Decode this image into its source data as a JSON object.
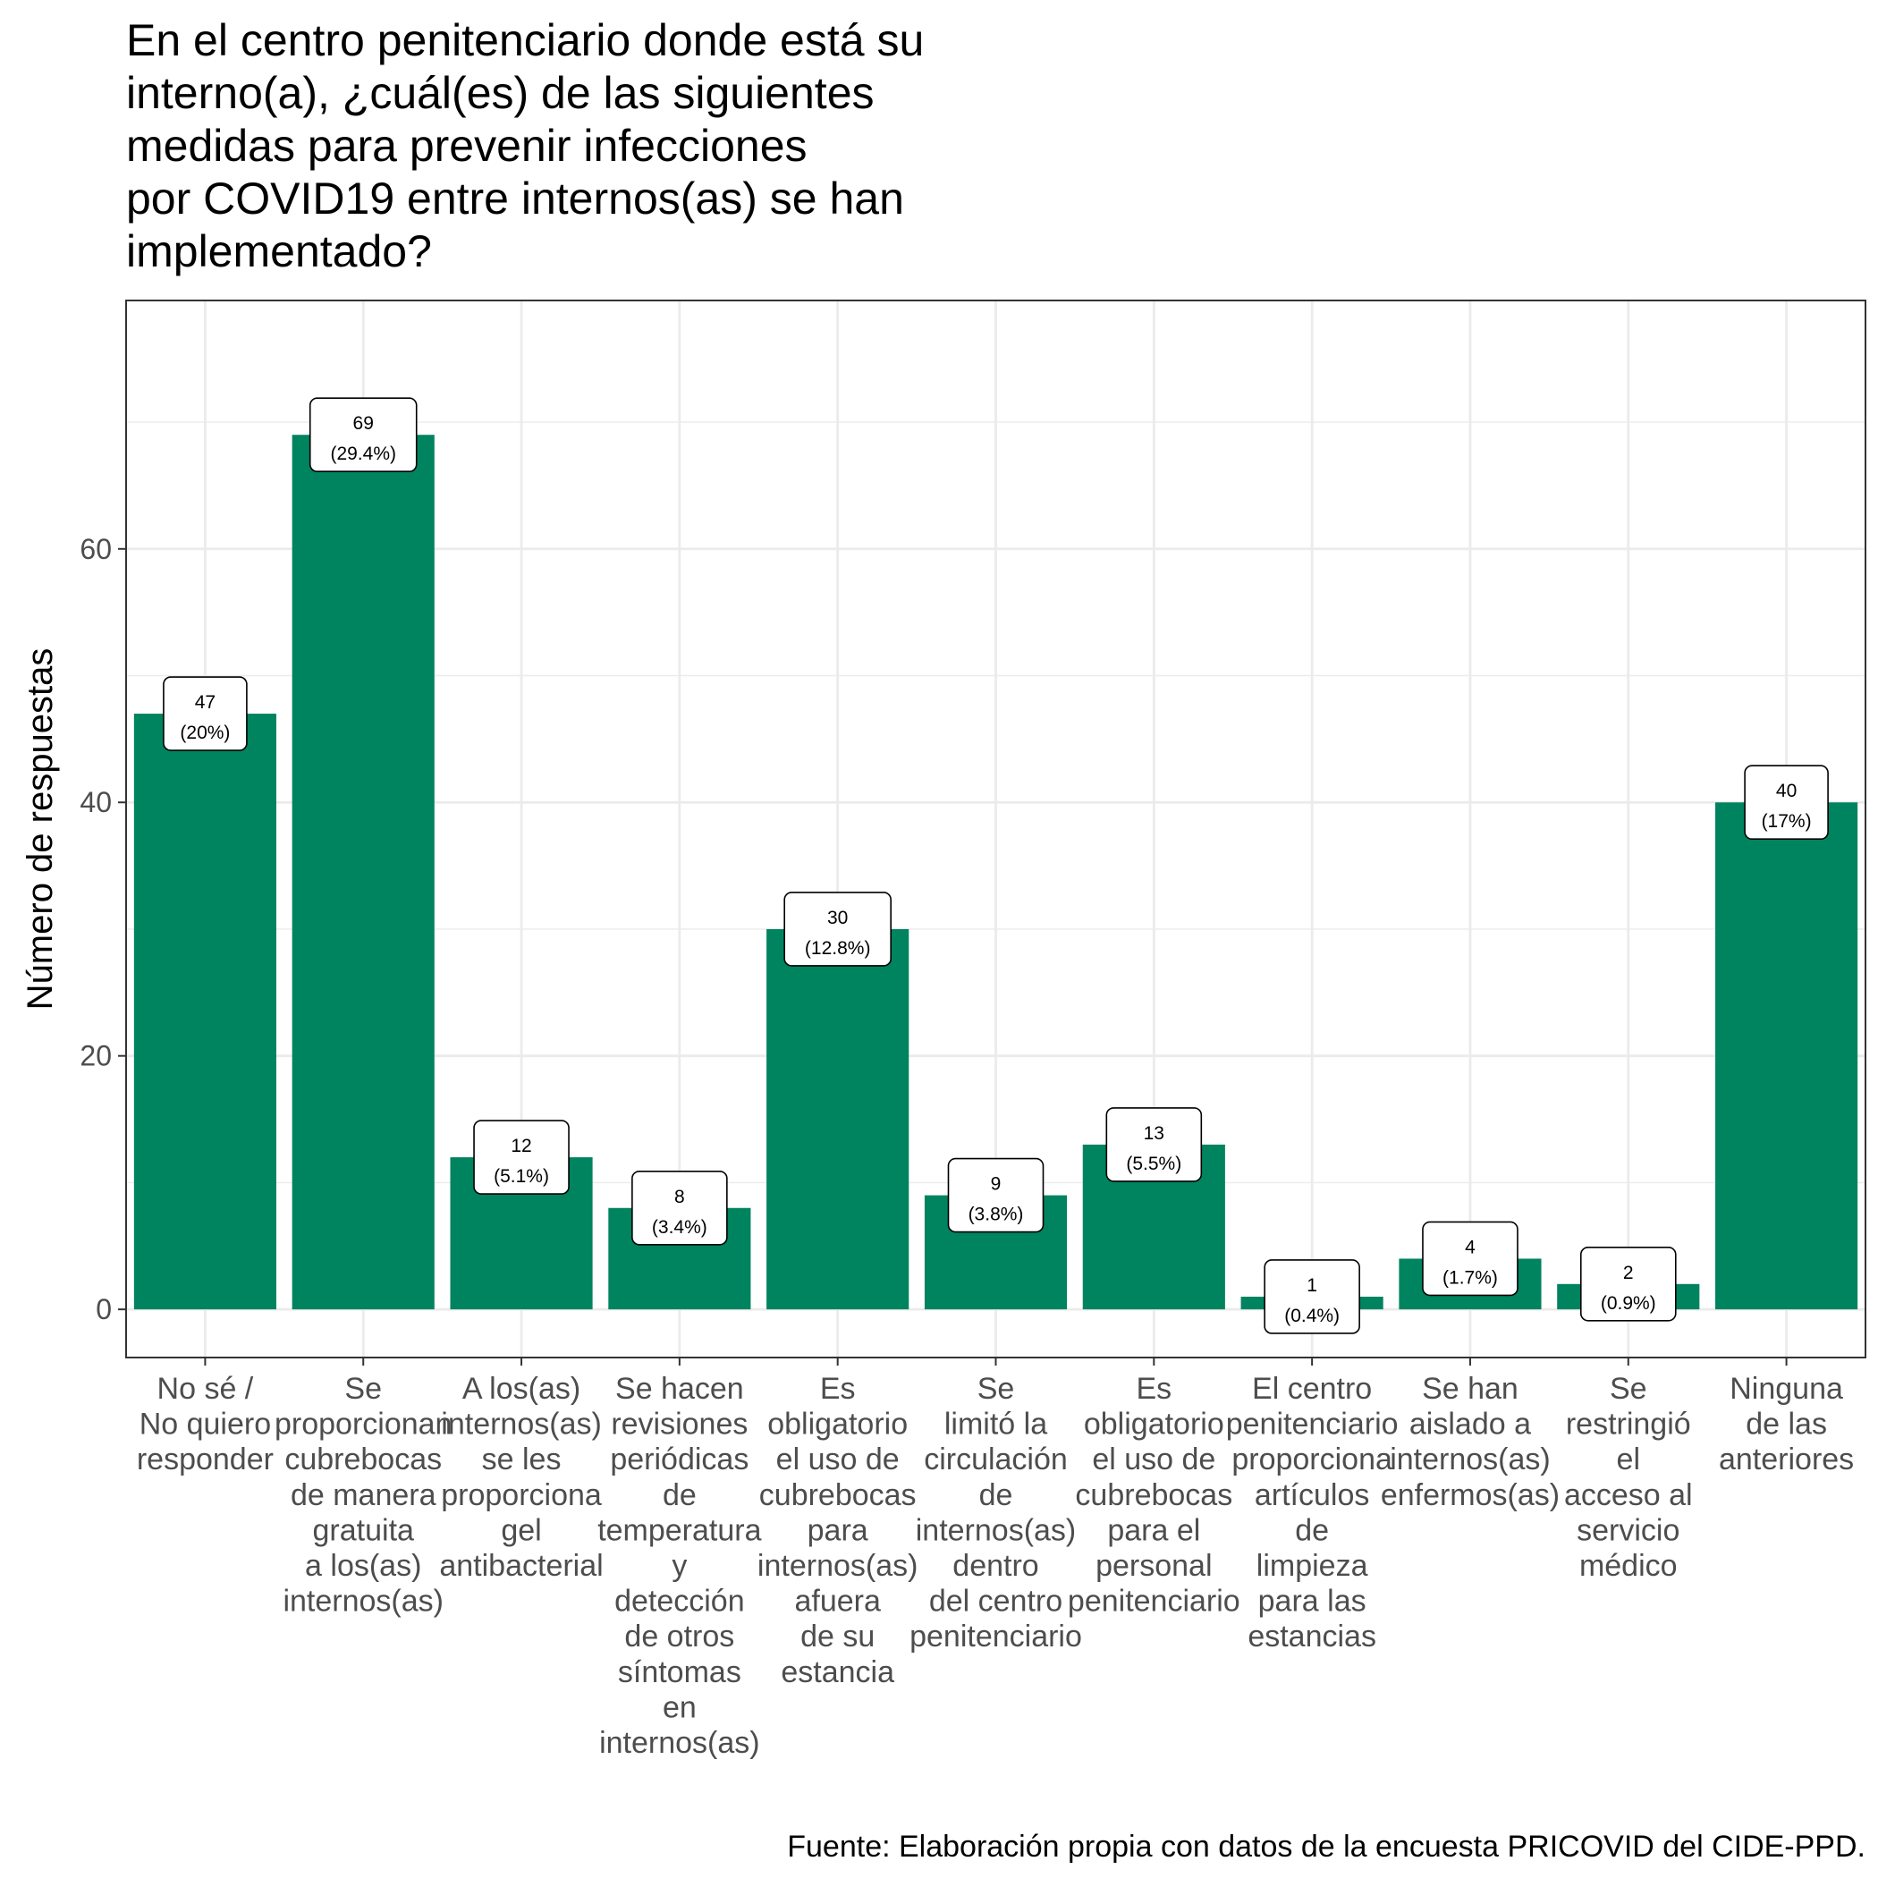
{
  "chart_data": {
    "type": "bar",
    "title": "En el centro penitenciario donde está su\ninterno(a), ¿cuál(es) de las siguientes\nmedidas para prevenir infecciones\npor COVID19 entre internos(as) se han\nimplementado?",
    "xlabel": "",
    "ylabel": "Número de respuestas",
    "ylim": [
      -3.8,
      79.6
    ],
    "yticks": [
      0,
      20,
      40,
      60
    ],
    "grid": true,
    "legend": "none",
    "bar_color": "#00835F",
    "categories": [
      [
        "No sé /",
        "No quiero",
        "responder"
      ],
      [
        "Se",
        "proporcionan",
        "cubrebocas",
        "de manera",
        "gratuita",
        "a los(as)",
        "internos(as)"
      ],
      [
        "A los(as)",
        "internos(as)",
        "se les",
        "proporciona",
        "gel",
        "antibacterial"
      ],
      [
        "Se hacen",
        "revisiones",
        "periódicas",
        "de",
        "temperatura",
        "y",
        "detección",
        "de otros",
        "síntomas",
        "en",
        "internos(as)"
      ],
      [
        "Es",
        "obligatorio",
        "el uso de",
        "cubrebocas",
        "para",
        "internos(as)",
        "afuera",
        "de su",
        "estancia"
      ],
      [
        "Se",
        "limitó la",
        "circulación",
        "de",
        "internos(as)",
        "dentro",
        "del centro",
        "penitenciario"
      ],
      [
        "Es",
        "obligatorio",
        "el uso de",
        "cubrebocas",
        "para el",
        "personal",
        "penitenciario"
      ],
      [
        "El centro",
        "penitenciario",
        "proporciona",
        "artículos",
        "de",
        "limpieza",
        "para las",
        "estancias"
      ],
      [
        "Se han",
        "aislado a",
        "internos(as)",
        "enfermos(as)"
      ],
      [
        "Se",
        "restringió",
        "el",
        "acceso al",
        "servicio",
        "médico"
      ],
      [
        "Ninguna",
        "de las",
        "anteriores"
      ]
    ],
    "values": [
      47,
      69,
      12,
      8,
      30,
      9,
      13,
      1,
      4,
      2,
      40
    ],
    "labels": [
      [
        "47",
        "(20%)"
      ],
      [
        "69",
        "(29.4%)"
      ],
      [
        "12",
        "(5.1%)"
      ],
      [
        "8",
        "(3.4%)"
      ],
      [
        "30",
        "(12.8%)"
      ],
      [
        "9",
        "(3.8%)"
      ],
      [
        "13",
        "(5.5%)"
      ],
      [
        "1",
        "(0.4%)"
      ],
      [
        "4",
        "(1.7%)"
      ],
      [
        "2",
        "(0.9%)"
      ],
      [
        "40",
        "(17%)"
      ]
    ]
  },
  "caption": "Fuente: Elaboración propia con datos de la encuesta PRICOVID del CIDE-PPD."
}
